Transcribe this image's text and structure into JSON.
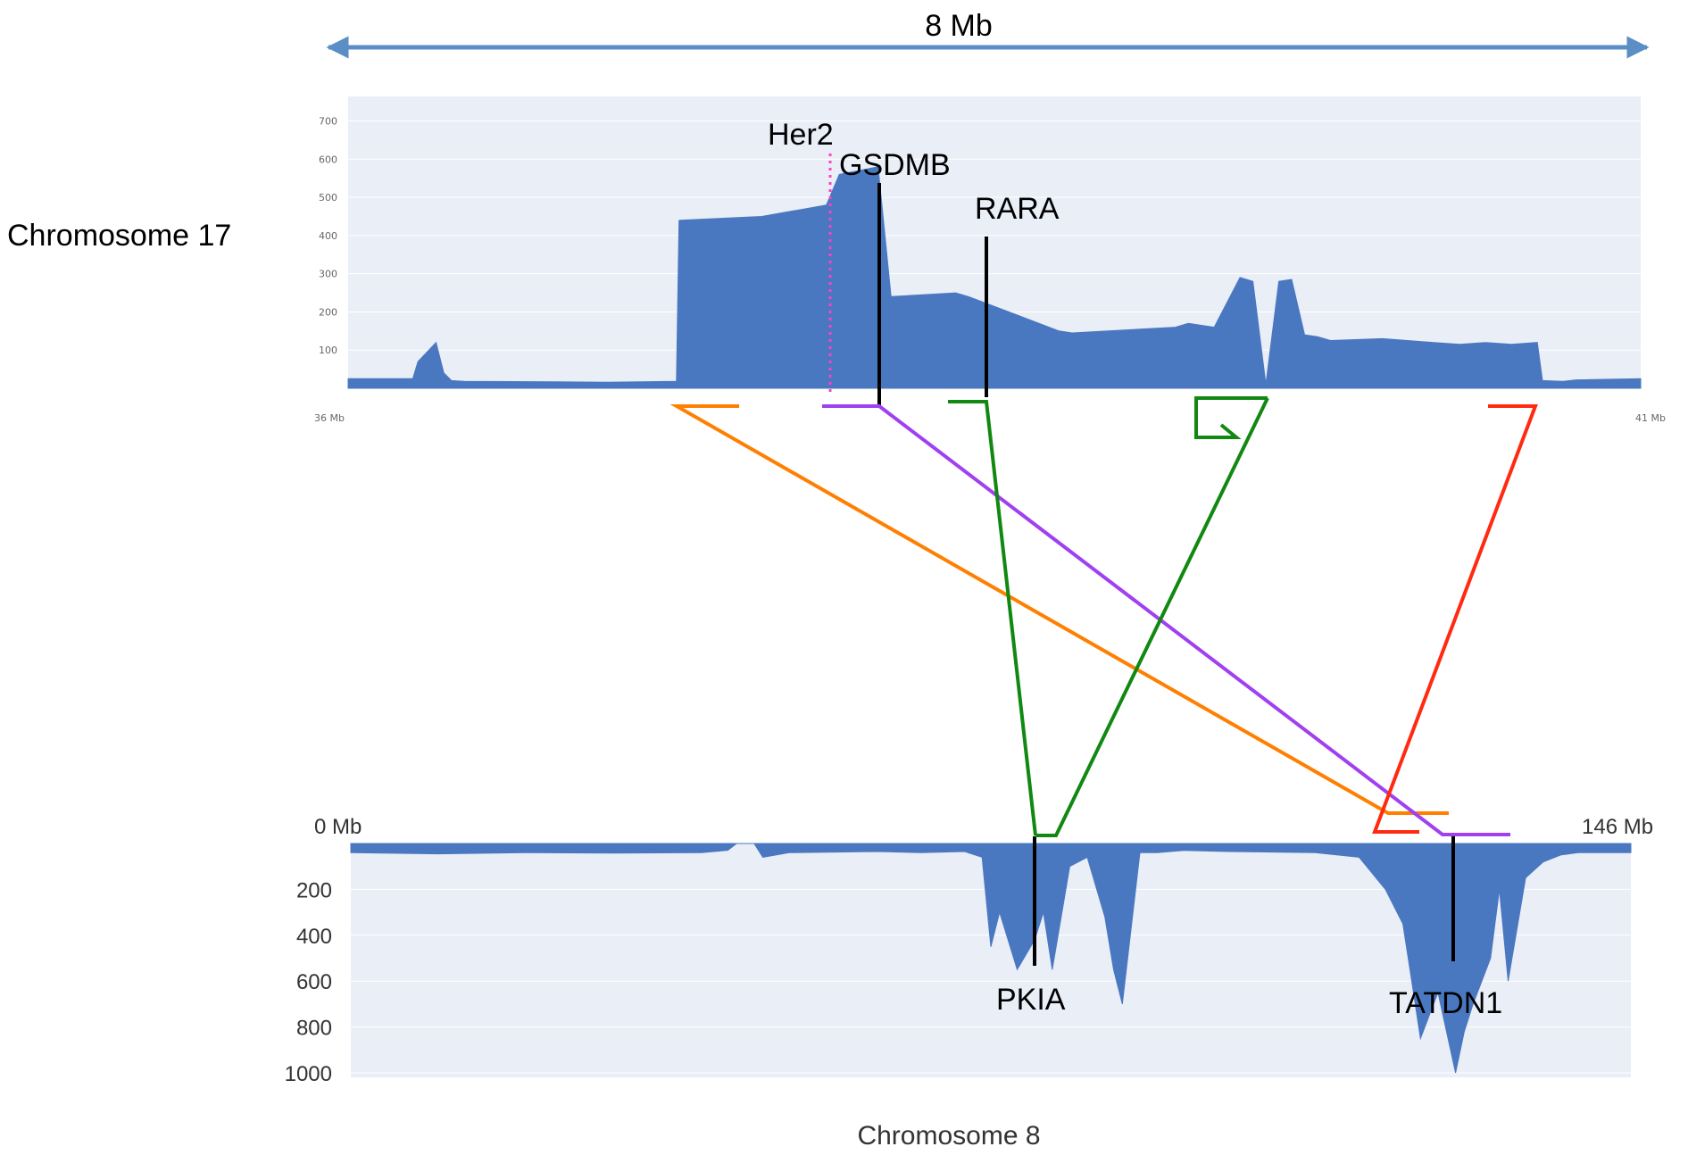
{
  "scale_bar": {
    "label": "8 Mb",
    "color": "#5b8ec4"
  },
  "colors": {
    "panel_bg": "#e9eef7",
    "fill": "#4a78c0",
    "her2": "#ff40c8",
    "orange": "#ff7f00",
    "purple": "#a040f0",
    "green": "#118811",
    "red": "#ff2a10"
  },
  "chart_data": [
    {
      "type": "area",
      "name_label": "Chromosome 17",
      "x_range_labels": [
        "36 Mb",
        "41 Mb"
      ],
      "xlim": [
        36,
        41
      ],
      "ylim": [
        0,
        720
      ],
      "yticks": [
        100,
        200,
        300,
        400,
        500,
        600,
        700
      ],
      "x": [
        36.0,
        36.25,
        36.27,
        36.34,
        36.37,
        36.4,
        36.45,
        36.8,
        37.0,
        37.27,
        37.28,
        37.6,
        37.85,
        37.9,
        38.05,
        38.1,
        38.35,
        38.4,
        38.75,
        38.8,
        39.2,
        39.25,
        39.35,
        39.45,
        39.5,
        39.55,
        39.6,
        39.65,
        39.7,
        39.75,
        39.8,
        40.0,
        40.2,
        40.3,
        40.4,
        40.5,
        40.6,
        40.62,
        40.7,
        40.75,
        41.0
      ],
      "values": [
        25,
        25,
        70,
        120,
        40,
        20,
        18,
        17,
        16,
        18,
        440,
        450,
        480,
        560,
        580,
        240,
        250,
        240,
        150,
        145,
        160,
        170,
        160,
        290,
        280,
        10,
        280,
        285,
        140,
        135,
        125,
        130,
        120,
        115,
        120,
        115,
        120,
        20,
        18,
        22,
        25
      ],
      "genes": [
        {
          "label": "Her2",
          "x": 37.85
        },
        {
          "label": "GSDMB",
          "x": 38.05
        },
        {
          "label": "RARA",
          "x": 38.4
        }
      ]
    },
    {
      "type": "area",
      "name_label": "Chromosome 8",
      "x_range_labels": [
        "0 Mb",
        "146 Mb"
      ],
      "xlim": [
        0,
        146
      ],
      "ylim": [
        0,
        1000
      ],
      "yticks": [
        200,
        400,
        600,
        800,
        1000
      ],
      "y_inverted": true,
      "x": [
        0,
        10,
        20,
        30,
        40,
        43,
        44,
        46,
        47,
        50,
        60,
        65,
        70,
        72,
        73,
        74,
        76,
        78,
        79,
        80,
        82,
        84,
        86,
        87,
        88,
        90,
        92,
        95,
        100,
        110,
        115,
        118,
        120,
        121,
        122,
        124,
        126,
        127,
        128,
        130,
        131,
        132,
        134,
        136,
        138,
        140,
        146
      ],
      "values": [
        40,
        45,
        40,
        42,
        40,
        30,
        0,
        0,
        60,
        40,
        35,
        40,
        35,
        60,
        450,
        300,
        550,
        420,
        300,
        550,
        100,
        60,
        320,
        550,
        700,
        40,
        40,
        30,
        35,
        40,
        60,
        200,
        350,
        600,
        850,
        650,
        1000,
        820,
        700,
        500,
        200,
        600,
        150,
        80,
        50,
        40,
        40
      ],
      "genes": [
        {
          "label": "PKIA",
          "x": 77.5
        },
        {
          "label": "TATDN1",
          "x": 125
        }
      ]
    }
  ]
}
